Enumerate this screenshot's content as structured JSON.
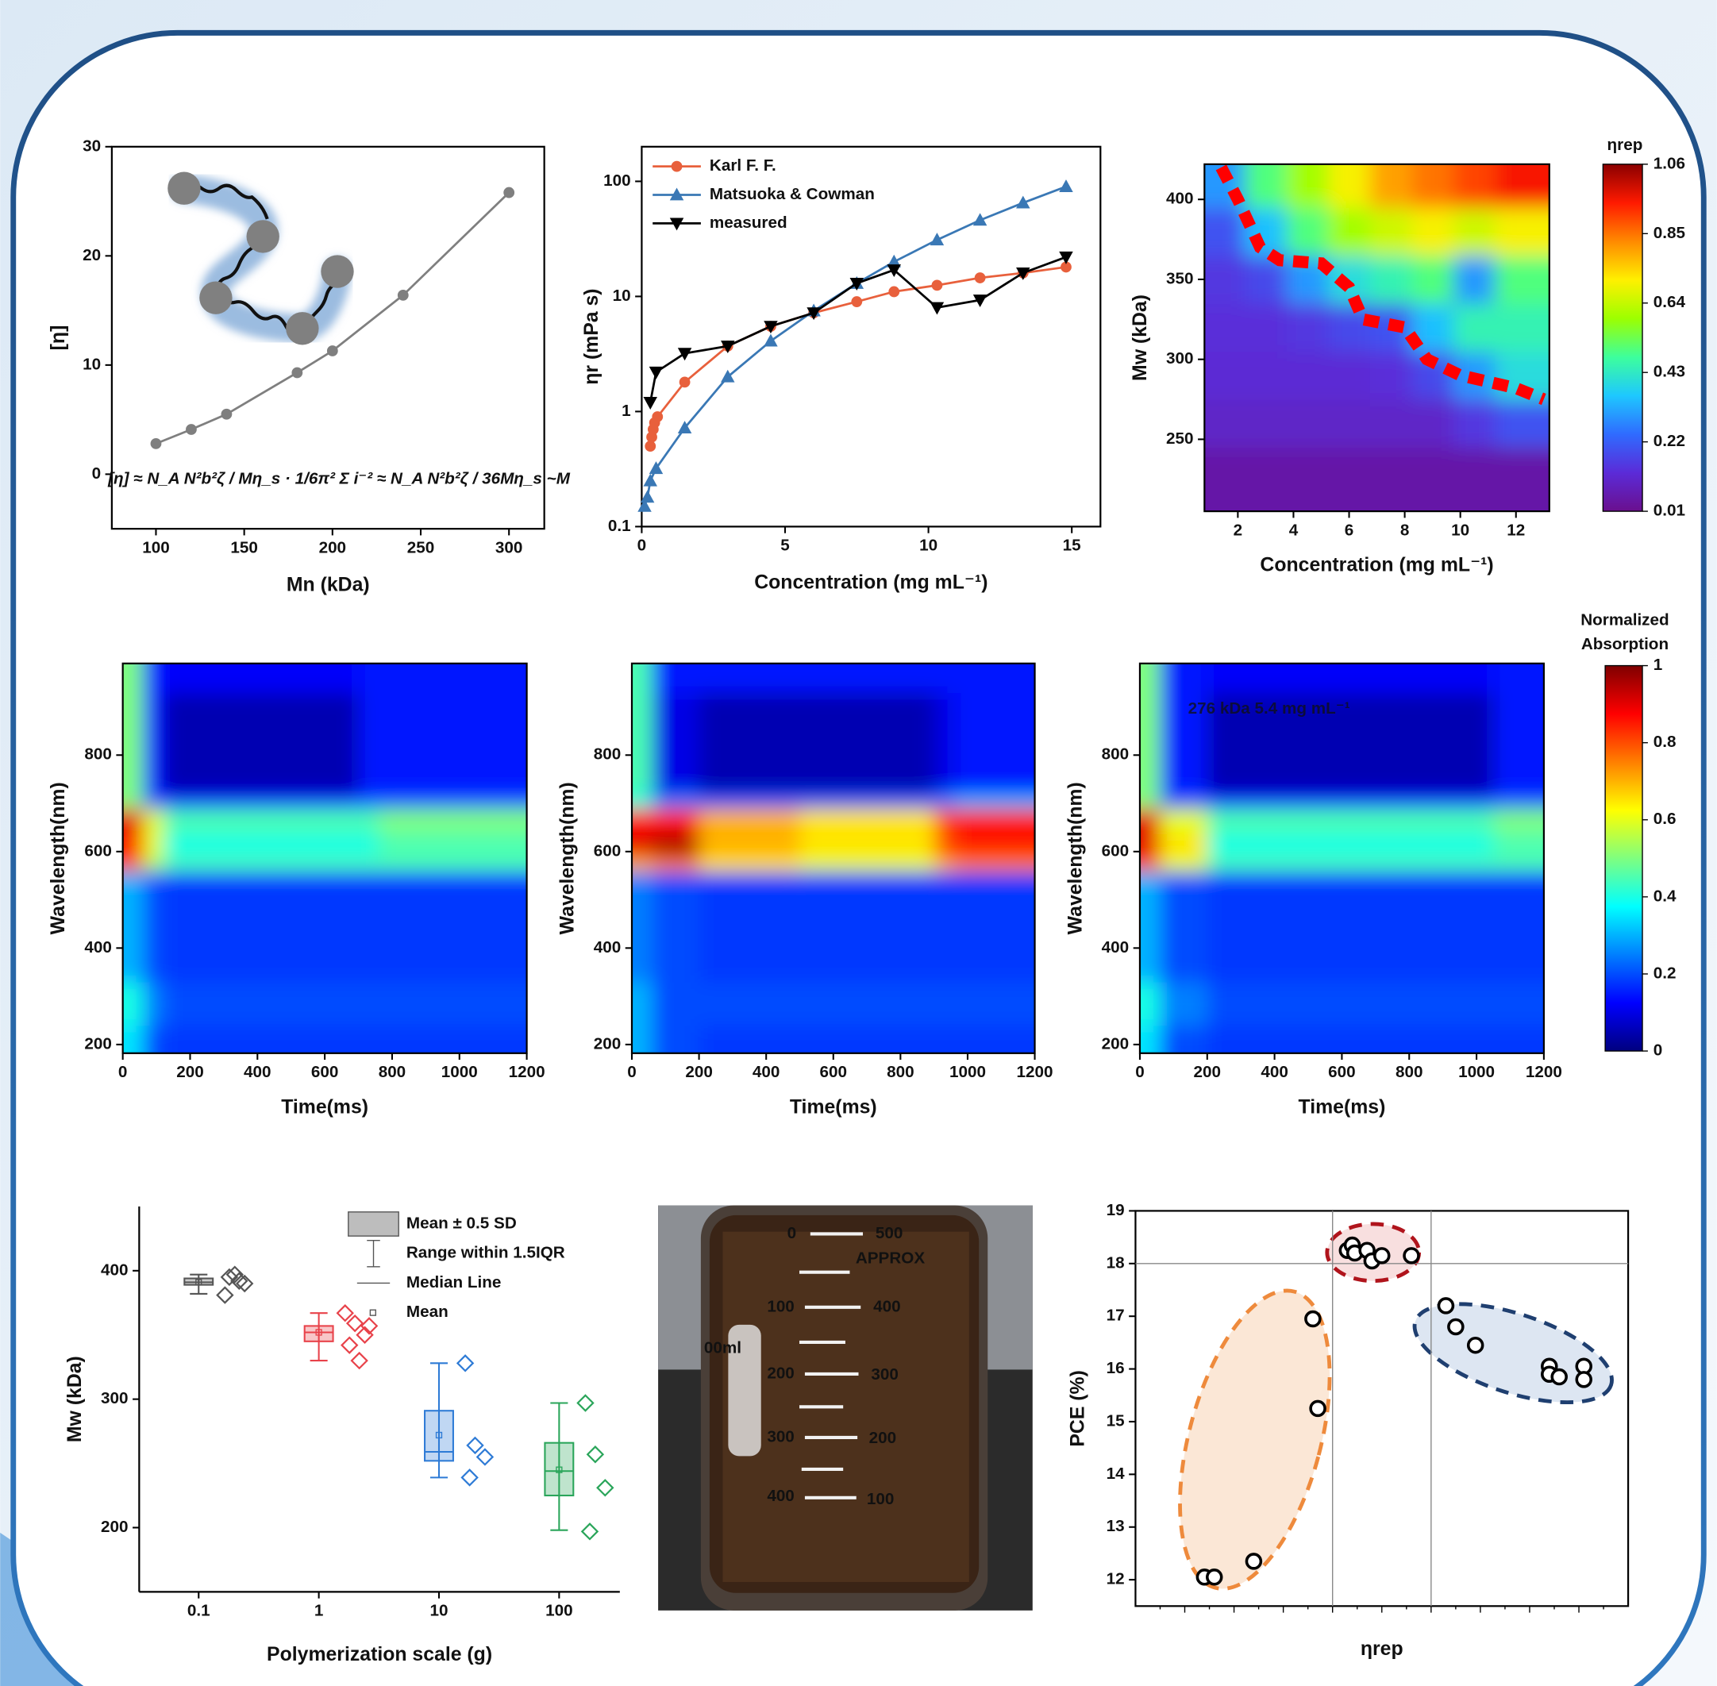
{
  "chart_data": [
    {
      "type": "line",
      "xlabel": "Mn (kDa)",
      "ylabel": "[η]",
      "annotation": "[η] ≈ N_A N²b²ζ / Mη_s · 1/6π² Σ i⁻² ≈ N_A N²b²ζ / 36Mη_s ~M",
      "xlim": [
        75,
        320
      ],
      "ylim": [
        -5,
        30
      ],
      "xticks": [
        100,
        150,
        200,
        250,
        300
      ],
      "yticks": [
        0,
        10,
        20,
        30
      ],
      "series": [
        {
          "color": "#7f7f7f",
          "marker": "circle",
          "x": [
            100,
            120,
            140,
            180,
            200,
            240,
            300
          ],
          "values": [
            2.8,
            4.1,
            5.5,
            9.3,
            11.3,
            16.4,
            25.8
          ]
        }
      ]
    },
    {
      "type": "line",
      "yscale": "log",
      "xlabel": "Concentration (mg mL⁻¹)",
      "ylabel": "ηr (mPa s)",
      "xlim": [
        0,
        16
      ],
      "ylim": [
        0.1,
        200
      ],
      "xticks": [
        0,
        5,
        10,
        15
      ],
      "yticks": [
        0.1,
        1,
        10,
        100
      ],
      "legend": "upper left",
      "series": [
        {
          "name": "Karl F. F.",
          "color": "#e8603c",
          "marker": "circle",
          "x": [
            0.3,
            0.35,
            0.4,
            0.45,
            0.55,
            1.5,
            3,
            4.5,
            6,
            7.5,
            8.8,
            10.3,
            11.8,
            13.3,
            14.8
          ],
          "values": [
            0.5,
            0.6,
            0.7,
            0.8,
            0.9,
            1.8,
            3.7,
            5.5,
            7.2,
            9,
            11,
            12.5,
            14.5,
            16,
            18
          ]
        },
        {
          "name": "Matsuoka & Cowman",
          "color": "#3a78b5",
          "marker": "triangle",
          "x": [
            0.1,
            0.2,
            0.3,
            0.5,
            1.5,
            3,
            4.5,
            6,
            7.5,
            8.8,
            10.3,
            11.8,
            13.3,
            14.8
          ],
          "values": [
            0.15,
            0.18,
            0.25,
            0.32,
            0.72,
            2,
            4.1,
            7.5,
            13,
            20,
            31,
            46,
            65,
            90
          ]
        },
        {
          "name": "measured",
          "color": "#000000",
          "marker": "triangle-down",
          "x": [
            0.3,
            0.5,
            1.5,
            3,
            4.5,
            6,
            7.5,
            8.8,
            10.3,
            11.8,
            13.3,
            14.8
          ],
          "values": [
            1.2,
            2.2,
            3.2,
            3.7,
            5.5,
            7.2,
            13,
            17,
            8,
            9.3,
            16,
            22
          ]
        }
      ]
    },
    {
      "type": "heatmap",
      "xlabel": "Concentration (mg mL⁻¹)",
      "ylabel": "Mw (kDa)",
      "colorbar_title": "ηrep",
      "xlim": [
        0.8,
        13.2
      ],
      "ylim": [
        205,
        422
      ],
      "xticks": [
        2,
        4,
        6,
        8,
        10,
        12
      ],
      "yticks": [
        250,
        300,
        350,
        400
      ],
      "colormap": [
        "#6a0f8e",
        "#5b2bd8",
        "#2f6bff",
        "#1ec8ff",
        "#3dff9c",
        "#9dff00",
        "#fff000",
        "#ff8a00",
        "#ff1a00",
        "#8b0000"
      ],
      "clim": [
        0.01,
        1.06
      ],
      "cticks": [
        0.01,
        0.22,
        0.43,
        0.64,
        0.85,
        1.06
      ],
      "x_edges": [
        0.8,
        2.25,
        3.75,
        5.25,
        6.75,
        8.25,
        9.75,
        11.25,
        13.2
      ],
      "y_edges": [
        205,
        245,
        275,
        305,
        335,
        365,
        395,
        422
      ],
      "z": [
        [
          0.05,
          0.05,
          0.05,
          0.05,
          0.05,
          0.05,
          0.05,
          0.05
        ],
        [
          0.1,
          0.1,
          0.1,
          0.1,
          0.1,
          0.1,
          0.15,
          0.2
        ],
        [
          0.12,
          0.12,
          0.12,
          0.12,
          0.13,
          0.18,
          0.3,
          0.4
        ],
        [
          0.13,
          0.13,
          0.15,
          0.18,
          0.2,
          0.35,
          0.45,
          0.45
        ],
        [
          0.15,
          0.18,
          0.3,
          0.4,
          0.45,
          0.5,
          0.3,
          0.5
        ],
        [
          0.2,
          0.35,
          0.5,
          0.6,
          0.65,
          0.7,
          0.65,
          0.7
        ],
        [
          0.3,
          0.5,
          0.6,
          0.7,
          0.8,
          0.85,
          0.9,
          0.95
        ]
      ],
      "boundary": {
        "color": "#ff0000",
        "x": [
          1.4,
          2,
          2.8,
          3.5,
          5,
          6,
          6.5,
          8,
          8.8,
          10,
          12,
          13
        ],
        "y": [
          420,
          400,
          370,
          362,
          360,
          345,
          325,
          320,
          300,
          290,
          282,
          275
        ]
      }
    },
    {
      "type": "heatmap",
      "xlabel": "Time(ms)",
      "ylabel": "Wavelength(nm)",
      "xlim": [
        0,
        1200
      ],
      "ylim": [
        182,
        990
      ],
      "xticks": [
        0,
        200,
        400,
        600,
        800,
        1000,
        1200
      ],
      "yticks": [
        200,
        400,
        600,
        800
      ],
      "colormap": [
        "#00007f",
        "#0000ff",
        "#007fff",
        "#00ffff",
        "#7fff7f",
        "#ffff00",
        "#ff7f00",
        "#ff0000",
        "#7f0000"
      ],
      "clim": [
        0,
        1
      ],
      "x_edges": [
        0,
        60,
        120,
        300,
        700,
        760,
        1000,
        1200
      ],
      "y_edges": [
        182,
        240,
        330,
        560,
        590,
        640,
        690,
        720,
        930,
        990
      ],
      "z": [
        [
          0.35,
          0.2,
          0.18,
          0.18,
          0.18,
          0.18,
          0.18
        ],
        [
          0.4,
          0.25,
          0.2,
          0.2,
          0.2,
          0.2,
          0.2
        ],
        [
          0.3,
          0.2,
          0.18,
          0.18,
          0.18,
          0.18,
          0.18
        ],
        [
          0.8,
          0.55,
          0.45,
          0.45,
          0.45,
          0.45,
          0.45
        ],
        [
          0.85,
          0.6,
          0.4,
          0.4,
          0.4,
          0.45,
          0.45
        ],
        [
          0.9,
          0.6,
          0.45,
          0.45,
          0.45,
          0.5,
          0.5
        ],
        [
          0.5,
          0.2,
          0.15,
          0.15,
          0.2,
          0.2,
          0.2
        ],
        [
          0.5,
          0.15,
          0.05,
          0.05,
          0.15,
          0.15,
          0.15
        ],
        [
          0.5,
          0.15,
          0.12,
          0.12,
          0.15,
          0.15,
          0.15
        ]
      ]
    },
    {
      "type": "heatmap",
      "xlabel": "Time(ms)",
      "ylabel": "Wavelength(nm)",
      "xlim": [
        0,
        1200
      ],
      "ylim": [
        182,
        990
      ],
      "xticks": [
        0,
        200,
        400,
        600,
        800,
        1000,
        1200
      ],
      "yticks": [
        200,
        400,
        600,
        800
      ],
      "colormap": [
        "#00007f",
        "#0000ff",
        "#007fff",
        "#00ffff",
        "#7fff7f",
        "#ffff00",
        "#ff7f00",
        "#ff0000",
        "#7f0000"
      ],
      "clim": [
        0,
        1
      ],
      "x_edges": [
        0,
        60,
        200,
        500,
        900,
        960,
        1200
      ],
      "y_edges": [
        182,
        240,
        330,
        560,
        590,
        640,
        690,
        720,
        930,
        990
      ],
      "z": [
        [
          0.3,
          0.2,
          0.18,
          0.18,
          0.18,
          0.18
        ],
        [
          0.3,
          0.2,
          0.2,
          0.2,
          0.2,
          0.2
        ],
        [
          0.25,
          0.2,
          0.18,
          0.18,
          0.18,
          0.18
        ],
        [
          0.7,
          0.75,
          0.65,
          0.6,
          0.7,
          0.75
        ],
        [
          0.9,
          0.95,
          0.7,
          0.65,
          0.8,
          0.85
        ],
        [
          0.85,
          0.85,
          0.7,
          0.65,
          0.8,
          0.85
        ],
        [
          0.4,
          0.25,
          0.2,
          0.2,
          0.25,
          0.3
        ],
        [
          0.45,
          0.1,
          0.05,
          0.05,
          0.1,
          0.15
        ],
        [
          0.45,
          0.15,
          0.15,
          0.15,
          0.15,
          0.15
        ]
      ]
    },
    {
      "type": "heatmap",
      "xlabel": "Time(ms)",
      "ylabel": "Wavelength(nm)",
      "annotation": "276 kDa 5.4 mg mL⁻¹",
      "colorbar_title": [
        "Normalized",
        "Absorption"
      ],
      "xlim": [
        0,
        1200
      ],
      "ylim": [
        182,
        990
      ],
      "xticks": [
        0,
        200,
        400,
        600,
        800,
        1000,
        1200
      ],
      "yticks": [
        200,
        400,
        600,
        800
      ],
      "colormap": [
        "#00007f",
        "#0000ff",
        "#007fff",
        "#00ffff",
        "#7fff7f",
        "#ffff00",
        "#ff7f00",
        "#ff0000",
        "#7f0000"
      ],
      "clim": [
        0,
        1
      ],
      "cticks": [
        0,
        0.2,
        0.4,
        0.6,
        0.8,
        1
      ],
      "x_edges": [
        0,
        60,
        200,
        600,
        1050,
        1200
      ],
      "y_edges": [
        182,
        240,
        330,
        560,
        590,
        640,
        690,
        720,
        930,
        990
      ],
      "z": [
        [
          0.35,
          0.2,
          0.18,
          0.18,
          0.18
        ],
        [
          0.4,
          0.25,
          0.2,
          0.2,
          0.2
        ],
        [
          0.3,
          0.2,
          0.18,
          0.18,
          0.18
        ],
        [
          0.8,
          0.6,
          0.45,
          0.45,
          0.45
        ],
        [
          0.9,
          0.65,
          0.4,
          0.4,
          0.45
        ],
        [
          0.9,
          0.6,
          0.45,
          0.45,
          0.5
        ],
        [
          0.5,
          0.2,
          0.15,
          0.15,
          0.2
        ],
        [
          0.5,
          0.15,
          0.05,
          0.05,
          0.15
        ],
        [
          0.5,
          0.15,
          0.12,
          0.12,
          0.15
        ]
      ]
    },
    {
      "type": "box",
      "xscale": "log",
      "xlabel": "Polymerization scale (g)",
      "ylabel": "Mw (kDa)",
      "xlim": [
        0.032,
        320
      ],
      "ylim": [
        150,
        450
      ],
      "xticks": [
        0.1,
        1,
        10,
        100
      ],
      "yticks": [
        200,
        300,
        400
      ],
      "legend": [
        "Mean ± 0.5 SD",
        "Range within 1.5IQR",
        "Median Line",
        "Mean"
      ],
      "groups": [
        {
          "x": 0.1,
          "color": "#555555",
          "box": [
            389,
            394
          ],
          "whiskers": [
            382,
            397
          ],
          "median": 391,
          "mean": 391,
          "points": [
            381,
            397,
            390,
            395,
            392
          ]
        },
        {
          "x": 1,
          "color": "#e8424a",
          "box": [
            345,
            357
          ],
          "whiskers": [
            330,
            367
          ],
          "median": 352,
          "mean": 352,
          "points": [
            367,
            359,
            350,
            342,
            330,
            357
          ]
        },
        {
          "x": 10,
          "color": "#2e7bd6",
          "box": [
            252,
            291
          ],
          "whiskers": [
            239,
            328
          ],
          "median": 259,
          "mean": 272,
          "points": [
            328,
            264,
            255,
            239
          ]
        },
        {
          "x": 100,
          "color": "#2aa55a",
          "box": [
            225,
            266
          ],
          "whiskers": [
            198,
            297
          ],
          "median": 244,
          "mean": 245,
          "points": [
            297,
            257,
            231,
            197
          ]
        }
      ]
    },
    {
      "type": "scatter",
      "xlabel": "ηrep",
      "ylabel": "PCE (%)",
      "xlim": [
        0,
        10
      ],
      "ylim": [
        11.5,
        19
      ],
      "yticks": [
        12,
        13,
        14,
        15,
        16,
        17,
        18,
        19
      ],
      "hlines": [
        18
      ],
      "vlines": [
        4,
        6
      ],
      "x": [
        1.4,
        1.6,
        2.4,
        3.6,
        3.7,
        4.3,
        4.4,
        4.45,
        4.7,
        4.8,
        5.0,
        5.6,
        6.3,
        6.5,
        6.9,
        8.4,
        8.4,
        8.6,
        9.1,
        9.1
      ],
      "values": [
        12.05,
        12.05,
        12.35,
        16.95,
        15.25,
        18.25,
        18.35,
        18.2,
        18.25,
        18.05,
        18.15,
        18.15,
        17.2,
        16.8,
        16.45,
        16.05,
        15.9,
        15.85,
        16.05,
        15.8
      ]
    }
  ],
  "photo": {
    "labels": [
      "0",
      "500",
      "APPROX",
      "100",
      "400",
      "200",
      "300",
      "300",
      "200",
      "400",
      "100",
      "00ml"
    ]
  }
}
